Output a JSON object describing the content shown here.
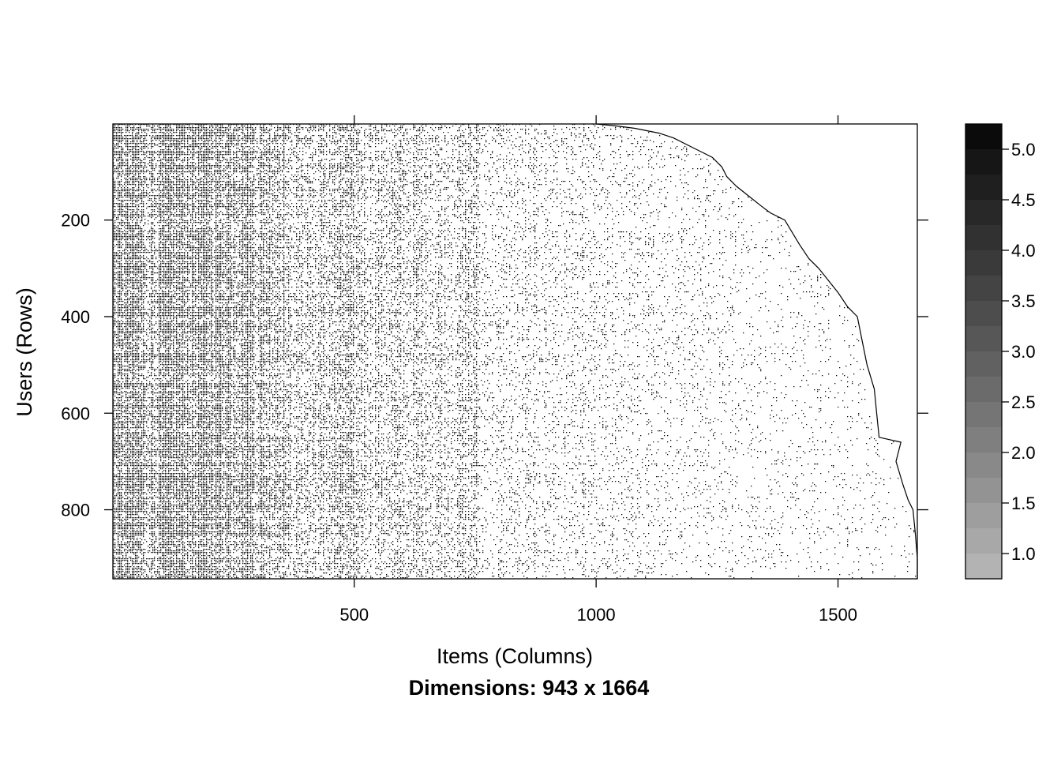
{
  "chart_data": {
    "type": "heatmap",
    "description_source": "rating matrix image plot (users x items)",
    "n_rows": 943,
    "n_cols": 1664,
    "xlabel": "Items (Columns)",
    "ylabel": "Users (Rows)",
    "sub": "Dimensions: 943 x 1664",
    "xlim": [
      1,
      1664
    ],
    "ylim": [
      943,
      1
    ],
    "x_ticks": [
      500,
      1000,
      1500
    ],
    "y_ticks": [
      200,
      400,
      600,
      800
    ],
    "colorkey": {
      "range": [
        0.75,
        5.25
      ],
      "levels": [
        0.75,
        1.0,
        1.25,
        1.5,
        1.75,
        2.0,
        2.25,
        2.5,
        2.75,
        3.0,
        3.25,
        3.5,
        3.75,
        4.0,
        4.25,
        4.5,
        4.75,
        5.0,
        5.25
      ],
      "colors": [
        "#b3b3b3",
        "#a8a8a8",
        "#9e9e9e",
        "#939393",
        "#898989",
        "#7f7f7f",
        "#757575",
        "#6b6b6b",
        "#616161",
        "#575757",
        "#4d4d4d",
        "#444444",
        "#3a3a3a",
        "#313131",
        "#282828",
        "#1f1f1f",
        "#161616",
        "#0b0b0b"
      ],
      "tick_values": [
        1.0,
        1.5,
        2.0,
        2.5,
        3.0,
        3.5,
        4.0,
        4.5,
        5.0
      ],
      "tick_labels": [
        "1.0",
        "1.5",
        "2.0",
        "2.5",
        "3.0",
        "3.5",
        "4.0",
        "4.5",
        "5.0"
      ]
    },
    "fill_boundary": {
      "note": "right edge (item index) of observed ratings per user row",
      "rows": [
        1,
        5,
        10,
        20,
        30,
        50,
        70,
        90,
        110,
        130,
        150,
        170,
        185,
        200,
        250,
        280,
        300,
        350,
        380,
        400,
        450,
        500,
        550,
        600,
        650,
        660,
        700,
        750,
        780,
        800,
        850,
        900,
        943
      ],
      "cols": [
        1000,
        1040,
        1080,
        1130,
        1160,
        1200,
        1240,
        1260,
        1270,
        1290,
        1315,
        1340,
        1360,
        1390,
        1420,
        1440,
        1460,
        1500,
        1520,
        1540,
        1550,
        1560,
        1575,
        1580,
        1585,
        1630,
        1620,
        1635,
        1645,
        1655,
        1660,
        1664,
        1664
      ]
    },
    "density_bands": {
      "note": "relative rating density by item-column range",
      "x_start": [
        1,
        60,
        130,
        200,
        290,
        360,
        450,
        520,
        600,
        740,
        760,
        900,
        1000,
        1150,
        1300,
        1500
      ],
      "x_end": [
        60,
        130,
        200,
        290,
        360,
        450,
        520,
        600,
        740,
        760,
        900,
        1000,
        1150,
        1300,
        1500,
        1664
      ],
      "density": [
        0.62,
        0.55,
        0.6,
        0.62,
        0.5,
        0.3,
        0.36,
        0.28,
        0.26,
        0.3,
        0.13,
        0.12,
        0.09,
        0.07,
        0.05,
        0.04
      ]
    }
  }
}
